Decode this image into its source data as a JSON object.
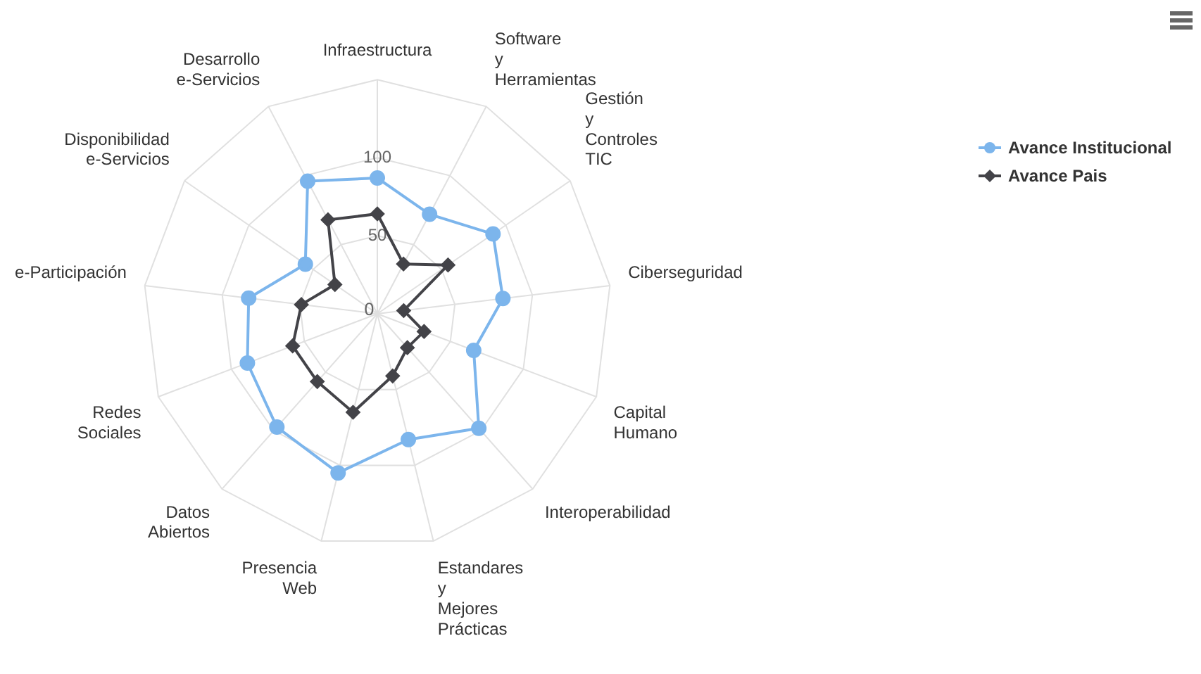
{
  "chart_data": {
    "type": "radar",
    "categories": [
      "Infraestructura",
      "Software y Herramientas",
      "Gestión y Controles TIC",
      "Ciberseguridad",
      "Capital Humano",
      "Interoperabilidad",
      "Estandares y Mejores Prácticas",
      "Presencia Web",
      "Datos Abiertos",
      "Redes Sociales",
      "e-Participación",
      "Disponibilidad e-Servicios",
      "Desarrollo e-Servicios"
    ],
    "series": [
      {
        "name": "Avance Institucional",
        "color": "#7cb5ec",
        "marker": "circle",
        "values": [
          87,
          72,
          90,
          81,
          66,
          98,
          83,
          105,
          97,
          89,
          83,
          56,
          96
        ]
      },
      {
        "name": "Avance Pais",
        "color": "#434348",
        "marker": "diamond",
        "values": [
          64,
          36,
          55,
          17,
          32,
          29,
          41,
          65,
          58,
          58,
          49,
          33,
          68
        ]
      }
    ],
    "ylim": [
      0,
      150
    ],
    "yticks": [
      0,
      50,
      100
    ],
    "grid": true,
    "legend": "top right"
  }
}
